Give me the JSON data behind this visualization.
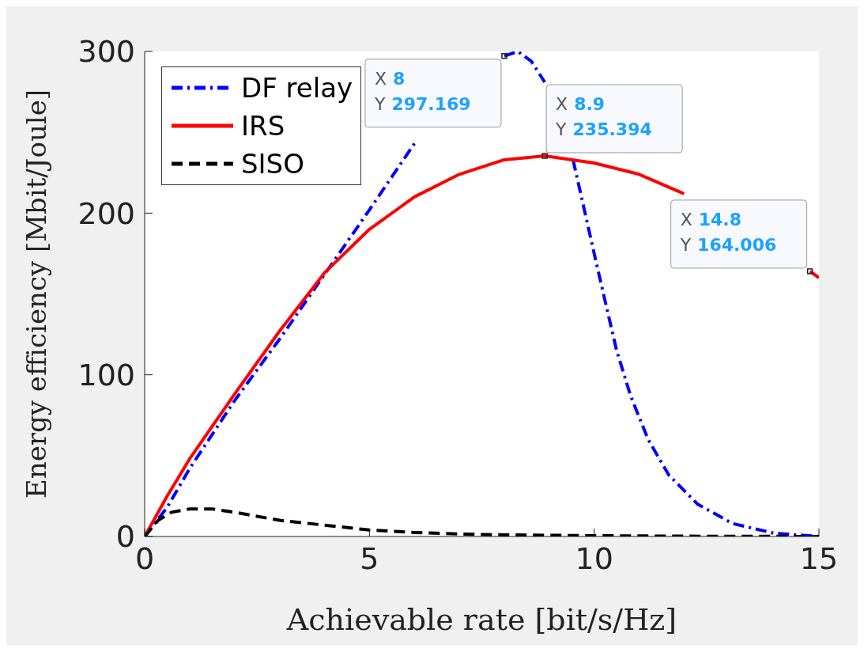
{
  "chart_data": {
    "type": "line",
    "xlabel": "Achievable rate [bit/s/Hz]",
    "ylabel": "Energy efficiency [Mbit/Joule]",
    "xlim": [
      0,
      15
    ],
    "xticks": [
      0,
      5,
      10,
      15
    ],
    "ylim": [
      0,
      300
    ],
    "yticks": [
      0,
      100,
      200,
      300
    ],
    "grid": false,
    "legend": "top left",
    "marker": "none",
    "series": [
      {
        "name": "DF relay",
        "color": "#0000ff",
        "line_style": "dashdot",
        "x": [
          0,
          0.5,
          1,
          2,
          3,
          4,
          5,
          6,
          7,
          7.5,
          8,
          8.3,
          8.6,
          8.9,
          9.2,
          9.53,
          10,
          10.24,
          10.5,
          10.81,
          11.2,
          11.66,
          12.3,
          13.08,
          14,
          14.5,
          15
        ],
        "values": [
          0,
          18,
          42,
          84,
          122,
          162,
          202,
          243,
          null,
          null,
          297.169,
          300,
          294,
          281,
          null,
          233,
          175,
          146,
          115,
          87,
          60,
          38,
          20,
          8,
          2,
          1,
          0
        ]
      },
      {
        "name": "IRS",
        "color": "#ff0000",
        "line_style": "solid",
        "x": [
          0,
          0.5,
          1,
          2,
          3,
          4,
          5,
          6,
          7,
          8,
          8.9,
          10,
          11,
          12,
          13,
          14,
          14.8,
          15
        ],
        "values": [
          0,
          25,
          48,
          88,
          127,
          163,
          190,
          210,
          224,
          233,
          235.394,
          231,
          224,
          212,
          null,
          null,
          164.006,
          160
        ]
      },
      {
        "name": "SISO",
        "color": "#000000",
        "line_style": "dashed",
        "x": [
          0,
          0.3,
          0.6,
          1,
          1.5,
          2,
          3,
          4,
          5,
          6,
          7,
          8,
          10,
          12,
          15
        ],
        "values": [
          0,
          10,
          15,
          17,
          17,
          15,
          10,
          7,
          4,
          2.5,
          1.5,
          1,
          0.5,
          0.2,
          0
        ]
      }
    ],
    "annotations": [
      {
        "text": "X 8\nY 297.169",
        "x": 8,
        "y": 297.169
      },
      {
        "text": "X 8.9\nY 235.394",
        "x": 8.9,
        "y": 235.394
      },
      {
        "text": "X 14.8\nY 164.006",
        "x": 14.8,
        "y": 164.006
      }
    ]
  }
}
